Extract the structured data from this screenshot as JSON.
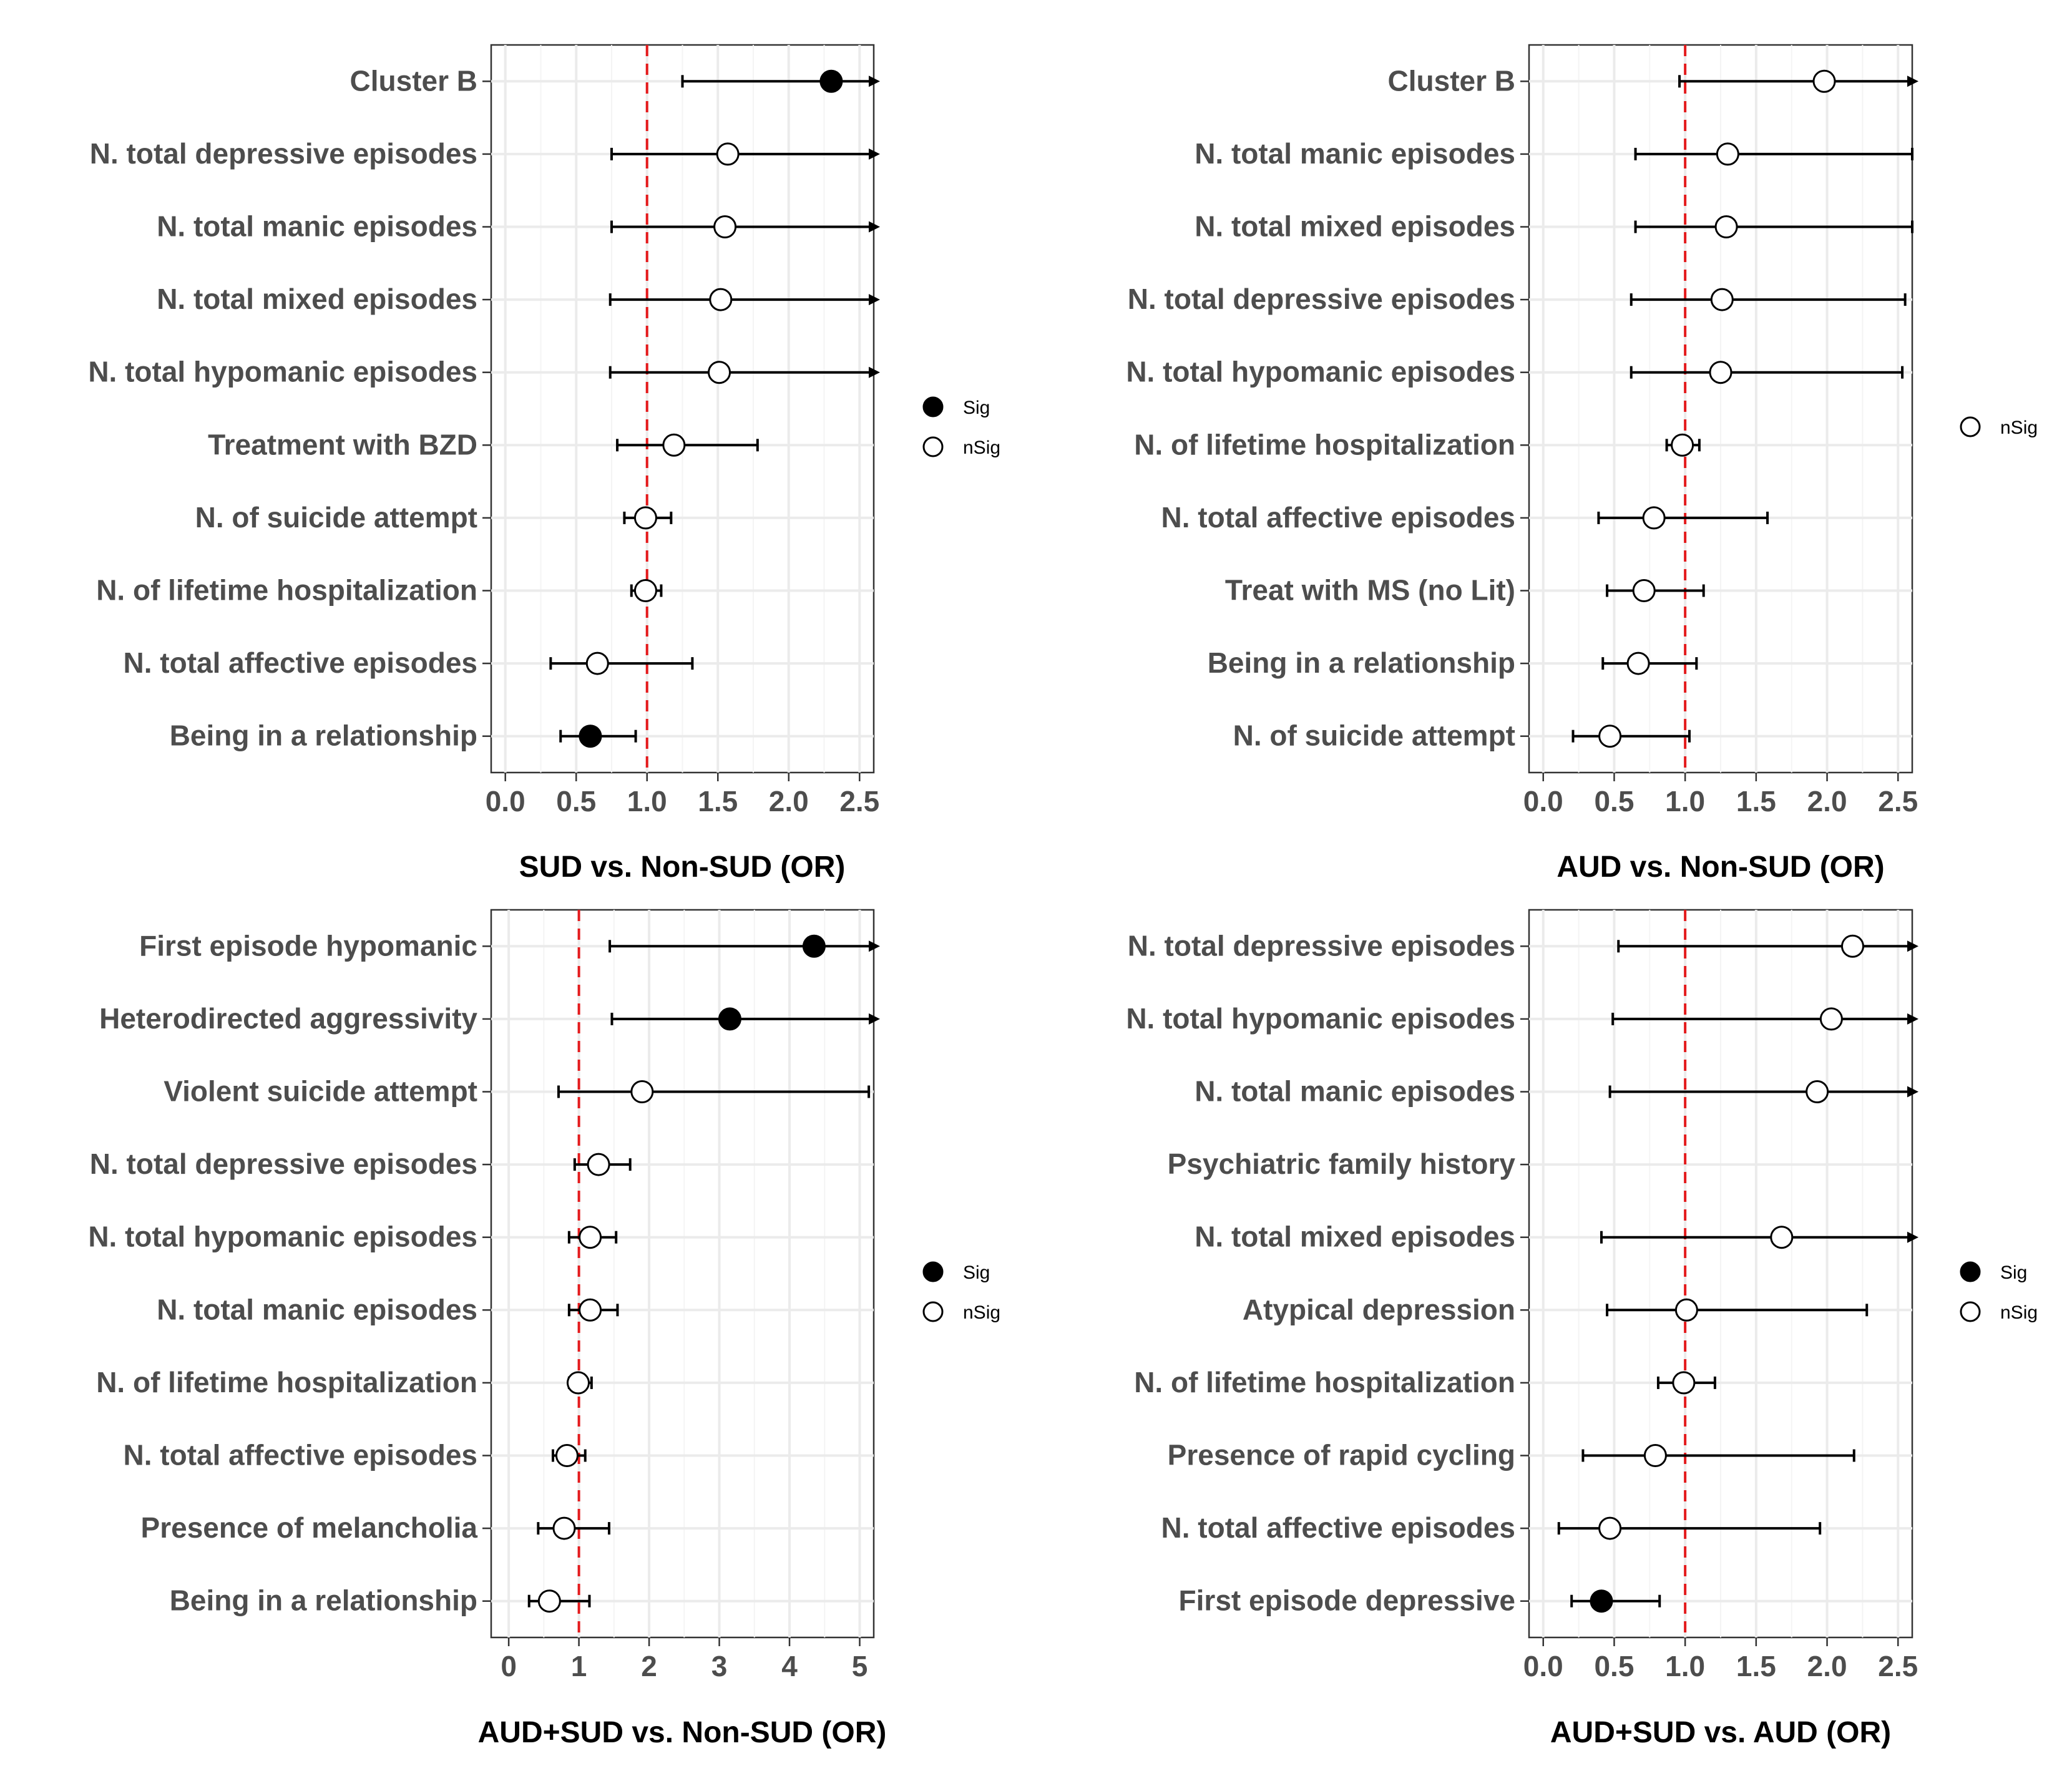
{
  "chart_data": [
    {
      "type": "scatter",
      "subtype": "forest-plot",
      "xlabel": "SUD vs. Non-SUD (OR)",
      "xlim": [
        -0.1,
        2.6
      ],
      "ticks": [
        0.0,
        0.5,
        1.0,
        1.5,
        2.0,
        2.5
      ],
      "tick_labels": [
        "0.0",
        "0.5",
        "1.0",
        "1.5",
        "2.0",
        "2.5"
      ],
      "reference_line": 1.0,
      "legend": [
        {
          "key": "sig",
          "label": "Sig"
        },
        {
          "key": "nsig",
          "label": "nSig"
        }
      ],
      "rows": [
        {
          "label": "Cluster B",
          "or": 2.3,
          "lo": 1.25,
          "hi": 2.6,
          "sig": true,
          "arrow": true
        },
        {
          "label": "N. total depressive episodes",
          "or": 1.57,
          "lo": 0.75,
          "hi": 2.6,
          "sig": false,
          "arrow": true
        },
        {
          "label": "N. total manic episodes",
          "or": 1.55,
          "lo": 0.75,
          "hi": 2.6,
          "sig": false,
          "arrow": true
        },
        {
          "label": "N. total mixed episodes",
          "or": 1.52,
          "lo": 0.74,
          "hi": 2.6,
          "sig": false,
          "arrow": true
        },
        {
          "label": "N. total hypomanic episodes",
          "or": 1.51,
          "lo": 0.74,
          "hi": 2.6,
          "sig": false,
          "arrow": true
        },
        {
          "label": "Treatment with BZD",
          "or": 1.19,
          "lo": 0.79,
          "hi": 1.78,
          "sig": false,
          "arrow": false
        },
        {
          "label": "N. of suicide attempt",
          "or": 0.99,
          "lo": 0.84,
          "hi": 1.17,
          "sig": false,
          "arrow": false
        },
        {
          "label": "N. of lifetime hospitalization",
          "or": 0.99,
          "lo": 0.89,
          "hi": 1.1,
          "sig": false,
          "arrow": false
        },
        {
          "label": "N. total affective episodes",
          "or": 0.65,
          "lo": 0.32,
          "hi": 1.32,
          "sig": false,
          "arrow": false
        },
        {
          "label": "Being in a relationship",
          "or": 0.6,
          "lo": 0.39,
          "hi": 0.92,
          "sig": true,
          "arrow": false
        }
      ]
    },
    {
      "type": "scatter",
      "subtype": "forest-plot",
      "xlabel": "AUD vs. Non-SUD (OR)",
      "xlim": [
        -0.1,
        2.6
      ],
      "ticks": [
        0.0,
        0.5,
        1.0,
        1.5,
        2.0,
        2.5
      ],
      "tick_labels": [
        "0.0",
        "0.5",
        "1.0",
        "1.5",
        "2.0",
        "2.5"
      ],
      "reference_line": 1.0,
      "legend": [
        {
          "key": "nsig",
          "label": "nSig"
        }
      ],
      "rows": [
        {
          "label": "Cluster B",
          "or": 1.98,
          "lo": 0.96,
          "hi": 2.6,
          "sig": false,
          "arrow": true
        },
        {
          "label": "N. total manic episodes",
          "or": 1.3,
          "lo": 0.65,
          "hi": 2.6,
          "sig": false,
          "arrow": false
        },
        {
          "label": "N. total mixed episodes",
          "or": 1.29,
          "lo": 0.65,
          "hi": 2.6,
          "sig": false,
          "arrow": false
        },
        {
          "label": "N. total depressive episodes",
          "or": 1.26,
          "lo": 0.62,
          "hi": 2.55,
          "sig": false,
          "arrow": false
        },
        {
          "label": "N. total hypomanic episodes",
          "or": 1.25,
          "lo": 0.62,
          "hi": 2.53,
          "sig": false,
          "arrow": false
        },
        {
          "label": "N. of lifetime hospitalization",
          "or": 0.98,
          "lo": 0.87,
          "hi": 1.1,
          "sig": false,
          "arrow": false
        },
        {
          "label": "N. total affective episodes",
          "or": 0.78,
          "lo": 0.39,
          "hi": 1.58,
          "sig": false,
          "arrow": false
        },
        {
          "label": "Treat  with MS (no Lit)",
          "or": 0.71,
          "lo": 0.45,
          "hi": 1.13,
          "sig": false,
          "arrow": false
        },
        {
          "label": "Being in a relationship",
          "or": 0.67,
          "lo": 0.42,
          "hi": 1.08,
          "sig": false,
          "arrow": false
        },
        {
          "label": "N. of suicide attempt",
          "or": 0.47,
          "lo": 0.21,
          "hi": 1.03,
          "sig": false,
          "arrow": false
        }
      ]
    },
    {
      "type": "scatter",
      "subtype": "forest-plot",
      "xlabel": "AUD+SUD vs. Non-SUD (OR)",
      "xlim": [
        -0.25,
        5.2
      ],
      "ticks": [
        0,
        1,
        2,
        3,
        4,
        5
      ],
      "tick_labels": [
        "0",
        "1",
        "2",
        "3",
        "4",
        "5"
      ],
      "reference_line": 1.0,
      "legend": [
        {
          "key": "sig",
          "label": "Sig"
        },
        {
          "key": "nsig",
          "label": "nSig"
        }
      ],
      "rows": [
        {
          "label": "First episode hypomanic",
          "or": 4.35,
          "lo": 1.44,
          "hi": 5.2,
          "sig": true,
          "arrow": true
        },
        {
          "label": "Heterodirected aggressivity",
          "or": 3.15,
          "lo": 1.47,
          "hi": 5.2,
          "sig": true,
          "arrow": true
        },
        {
          "label": "Violent suicide attempt",
          "or": 1.9,
          "lo": 0.71,
          "hi": 5.13,
          "sig": false,
          "arrow": false
        },
        {
          "label": "N. total depressive episodes",
          "or": 1.28,
          "lo": 0.94,
          "hi": 1.73,
          "sig": false,
          "arrow": false
        },
        {
          "label": "N. total hypomanic episodes",
          "or": 1.16,
          "lo": 0.86,
          "hi": 1.53,
          "sig": false,
          "arrow": false
        },
        {
          "label": "N. total manic episodes",
          "or": 1.16,
          "lo": 0.86,
          "hi": 1.55,
          "sig": false,
          "arrow": false
        },
        {
          "label": "N. of lifetime hospitalization",
          "or": 0.99,
          "lo": 0.86,
          "hi": 1.18,
          "sig": false,
          "arrow": false
        },
        {
          "label": "N. total affective episodes",
          "or": 0.83,
          "lo": 0.63,
          "hi": 1.09,
          "sig": false,
          "arrow": false
        },
        {
          "label": "Presence of melancholia",
          "or": 0.79,
          "lo": 0.42,
          "hi": 1.43,
          "sig": false,
          "arrow": false
        },
        {
          "label": "Being in a relationship",
          "or": 0.58,
          "lo": 0.29,
          "hi": 1.15,
          "sig": false,
          "arrow": false
        }
      ]
    },
    {
      "type": "scatter",
      "subtype": "forest-plot",
      "xlabel": "AUD+SUD vs. AUD (OR)",
      "xlim": [
        -0.1,
        2.6
      ],
      "ticks": [
        0.0,
        0.5,
        1.0,
        1.5,
        2.0,
        2.5
      ],
      "tick_labels": [
        "0.0",
        "0.5",
        "1.0",
        "1.5",
        "2.0",
        "2.5"
      ],
      "reference_line": 1.0,
      "legend": [
        {
          "key": "sig",
          "label": "Sig"
        },
        {
          "key": "nsig",
          "label": "nSig"
        }
      ],
      "rows": [
        {
          "label": "N. total depressive episodes",
          "or": 2.18,
          "lo": 0.53,
          "hi": 2.6,
          "sig": false,
          "arrow": true
        },
        {
          "label": "N. total hypomanic episodes",
          "or": 2.03,
          "lo": 0.49,
          "hi": 2.6,
          "sig": false,
          "arrow": true
        },
        {
          "label": "N. total manic episodes",
          "or": 1.93,
          "lo": 0.47,
          "hi": 2.6,
          "sig": false,
          "arrow": true
        },
        {
          "label": "Psychiatric family history",
          "or": null,
          "lo": null,
          "hi": null,
          "sig": false,
          "arrow": false
        },
        {
          "label": "N. total mixed episodes",
          "or": 1.68,
          "lo": 0.41,
          "hi": 2.6,
          "sig": false,
          "arrow": true
        },
        {
          "label": "Atypical depression",
          "or": 1.01,
          "lo": 0.45,
          "hi": 2.28,
          "sig": false,
          "arrow": false
        },
        {
          "label": "N. of lifetime hospitalization",
          "or": 0.99,
          "lo": 0.81,
          "hi": 1.21,
          "sig": false,
          "arrow": false
        },
        {
          "label": "Presence of rapid cycling",
          "or": 0.79,
          "lo": 0.28,
          "hi": 2.19,
          "sig": false,
          "arrow": false
        },
        {
          "label": "N. total affective episodes",
          "or": 0.47,
          "lo": 0.11,
          "hi": 1.95,
          "sig": false,
          "arrow": false
        },
        {
          "label": "First episode depressive",
          "or": 0.41,
          "lo": 0.2,
          "hi": 0.82,
          "sig": true,
          "arrow": false
        }
      ]
    }
  ]
}
